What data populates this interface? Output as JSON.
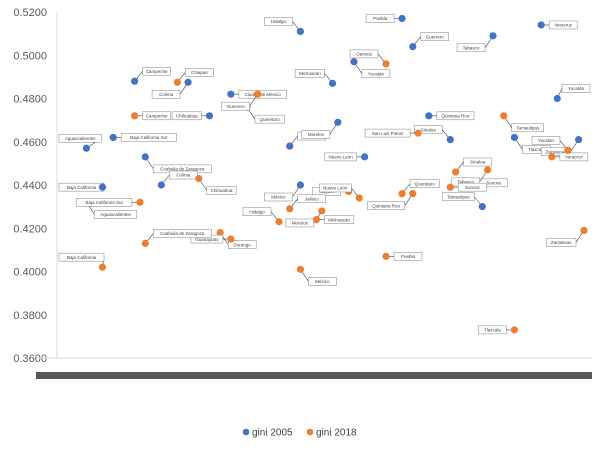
{
  "chart_data": {
    "type": "scatter",
    "title": "",
    "xlabel": "",
    "ylabel": "",
    "ylim": [
      0.36,
      0.52
    ],
    "yticks": [
      "0.5200",
      "0.5000",
      "0.4800",
      "0.4600",
      "0.4400",
      "0.4200",
      "0.4000",
      "0.3800",
      "0.3600"
    ],
    "grid": false,
    "legend_position": "bottom",
    "series": [
      {
        "name": "gini 2005",
        "color": "#4472C4",
        "points": [
          {
            "label": "Campeche",
            "x": 14.5,
            "y": 0.488
          },
          {
            "label": "Colima",
            "x": 24.5,
            "y": 0.4875
          },
          {
            "label": "Ciudad de México",
            "x": 32.5,
            "y": 0.482
          },
          {
            "label": "Hidalgo",
            "x": 45.5,
            "y": 0.511
          },
          {
            "label": "Yucatán",
            "x": 55.5,
            "y": 0.497
          },
          {
            "label": "Puebla",
            "x": 64.5,
            "y": 0.517
          },
          {
            "label": "Guerrero",
            "x": 66.5,
            "y": 0.504
          },
          {
            "label": "Tabasco",
            "x": 81.5,
            "y": 0.509
          },
          {
            "label": "Veracruz",
            "x": 90.5,
            "y": 0.514
          },
          {
            "label": "Michoacán",
            "x": 51.5,
            "y": 0.487
          },
          {
            "label": "Querétaro",
            "x": 35.5,
            "y": 0.476
          },
          {
            "label": "Chihuahua",
            "x": 28.5,
            "y": 0.472
          },
          {
            "label": "Jalisco",
            "x": 43.5,
            "y": 0.458
          },
          {
            "label": "Morelos",
            "x": 52.5,
            "y": 0.469
          },
          {
            "label": "Quintana Roo",
            "x": 69.5,
            "y": 0.472
          },
          {
            "label": "Sinaloa",
            "x": 73.5,
            "y": 0.461
          },
          {
            "label": "Tlaxcala",
            "x": 85.5,
            "y": 0.462
          },
          {
            "label": "Nuevo León",
            "x": 57.5,
            "y": 0.453
          },
          {
            "label": "Yucatán",
            "x": 93.5,
            "y": 0.48
          },
          {
            "label": "Zacatecas",
            "x": 97.5,
            "y": 0.461
          },
          {
            "label": "Baja California Sur",
            "x": 10.5,
            "y": 0.462
          },
          {
            "label": "Aguascalientes",
            "x": 5.5,
            "y": 0.457
          },
          {
            "label": "Coahuila de Zaragoza",
            "x": 16.5,
            "y": 0.453
          },
          {
            "label": "Baja California",
            "x": 8.5,
            "y": 0.439
          },
          {
            "label": "Colima",
            "x": 19.5,
            "y": 0.44
          },
          {
            "label": "México",
            "x": 45.5,
            "y": 0.44
          },
          {
            "label": "Sonora",
            "x": 77.5,
            "y": 0.441
          },
          {
            "label": "Tamaulipas",
            "x": 79.5,
            "y": 0.43
          }
        ]
      },
      {
        "name": "gini 2018",
        "color": "#ED7D31",
        "points": [
          {
            "label": "Chiapas",
            "x": 22.5,
            "y": 0.4875
          },
          {
            "label": "Guerrero",
            "x": 37.5,
            "y": 0.482
          },
          {
            "label": "Campeche",
            "x": 14.5,
            "y": 0.472
          },
          {
            "label": "Oaxaca",
            "x": 61.5,
            "y": 0.496
          },
          {
            "label": "Tamaulipas",
            "x": 83.5,
            "y": 0.472
          },
          {
            "label": "San Luis Potosí",
            "x": 67.5,
            "y": 0.464
          },
          {
            "label": "Sinaloa",
            "x": 74.5,
            "y": 0.446
          },
          {
            "label": "Tabasco",
            "x": 80.5,
            "y": 0.447
          },
          {
            "label": "Veracruz",
            "x": 92.5,
            "y": 0.453
          },
          {
            "label": "Yucatán",
            "x": 95.5,
            "y": 0.456
          },
          {
            "label": "Chihuahua",
            "x": 26.5,
            "y": 0.443
          },
          {
            "label": "Nayarit",
            "x": 54.5,
            "y": 0.437
          },
          {
            "label": "Querétaro",
            "x": 64.5,
            "y": 0.436
          },
          {
            "label": "Quintana Roo",
            "x": 66.5,
            "y": 0.436
          },
          {
            "label": "Sonora",
            "x": 73.5,
            "y": 0.439
          },
          {
            "label": "Nuevo León",
            "x": 56.5,
            "y": 0.434
          },
          {
            "label": "Aguascalientes",
            "x": 5.5,
            "y": 0.432
          },
          {
            "label": "Baja California Sur",
            "x": 15.5,
            "y": 0.432
          },
          {
            "label": "Jalisco",
            "x": 43.5,
            "y": 0.429
          },
          {
            "label": "Morelos",
            "x": 49.5,
            "y": 0.428
          },
          {
            "label": "Michoacán",
            "x": 48.5,
            "y": 0.424
          },
          {
            "label": "Hidalgo",
            "x": 41.5,
            "y": 0.423
          },
          {
            "label": "Durango",
            "x": 30.5,
            "y": 0.418
          },
          {
            "label": "Guanajuato",
            "x": 32.5,
            "y": 0.415
          },
          {
            "label": "Coahuila de Zaragoza",
            "x": 16.5,
            "y": 0.413
          },
          {
            "label": "Zacatecas",
            "x": 98.5,
            "y": 0.419
          },
          {
            "label": "Puebla",
            "x": 61.5,
            "y": 0.407
          },
          {
            "label": "Baja California",
            "x": 8.5,
            "y": 0.402
          },
          {
            "label": "México",
            "x": 45.5,
            "y": 0.401
          },
          {
            "label": "Tlaxcala",
            "x": 85.5,
            "y": 0.373
          }
        ]
      }
    ]
  }
}
